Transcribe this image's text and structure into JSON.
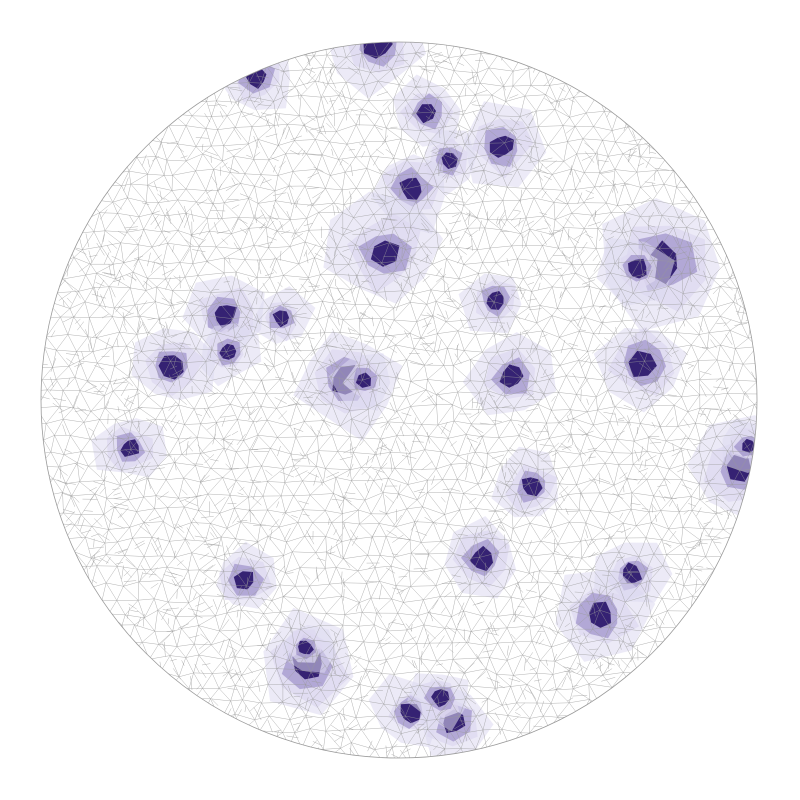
{
  "figure": {
    "type": "delaunay-mesh-density-map",
    "shape": "disc",
    "colors": {
      "background": "#ffffff",
      "mesh_edge": "#9a9a9a",
      "spot_core": "#2e1a6e",
      "spot_mid": "#7a68b4",
      "spot_halo": "#ddd8f0"
    },
    "spot_count": 31
  }
}
